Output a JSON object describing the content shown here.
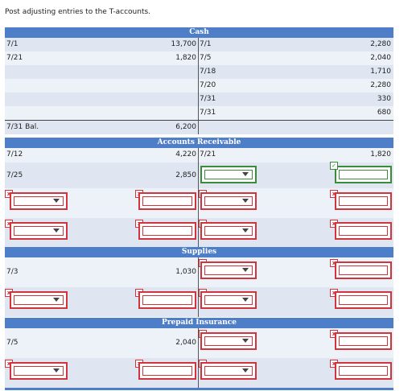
{
  "instruction": "Post adjusting entries to the T-accounts.",
  "status_icons": {
    "wrong": "x-mark-icon",
    "correct": "check-mark-icon"
  },
  "colors": {
    "header": "#4f7ec8",
    "wrong": "#d0343c",
    "correct": "#3a8c3a"
  },
  "cash": {
    "title": "Cash",
    "rows": [
      {
        "dl": "7/1",
        "dv": "13,700",
        "cl": "7/1",
        "cv": "2,280"
      },
      {
        "dl": "7/21",
        "dv": "1,820",
        "cl": "7/5",
        "cv": "2,040"
      },
      {
        "dl": "",
        "dv": "",
        "cl": "7/18",
        "cv": "1,710"
      },
      {
        "dl": "",
        "dv": "",
        "cl": "7/20",
        "cv": "2,280"
      },
      {
        "dl": "",
        "dv": "",
        "cl": "7/31",
        "cv": "330"
      },
      {
        "dl": "",
        "dv": "",
        "cl": "7/31",
        "cv": "680"
      }
    ],
    "bal_label": "7/31 Bal.",
    "bal_value": "6,200"
  },
  "ar": {
    "title": "Accounts Receivable",
    "row1": {
      "dl": "7/12",
      "dv": "4,220",
      "cl": "7/21",
      "cv": "1,820"
    },
    "row2": {
      "dl": "7/25",
      "dv": "2,850"
    }
  },
  "supplies": {
    "title": "Supplies",
    "dl": "7/3",
    "dv": "1,030"
  },
  "prepaid": {
    "title": "Prepaid Insurance",
    "dl": "7/5",
    "dv": "2,040"
  }
}
